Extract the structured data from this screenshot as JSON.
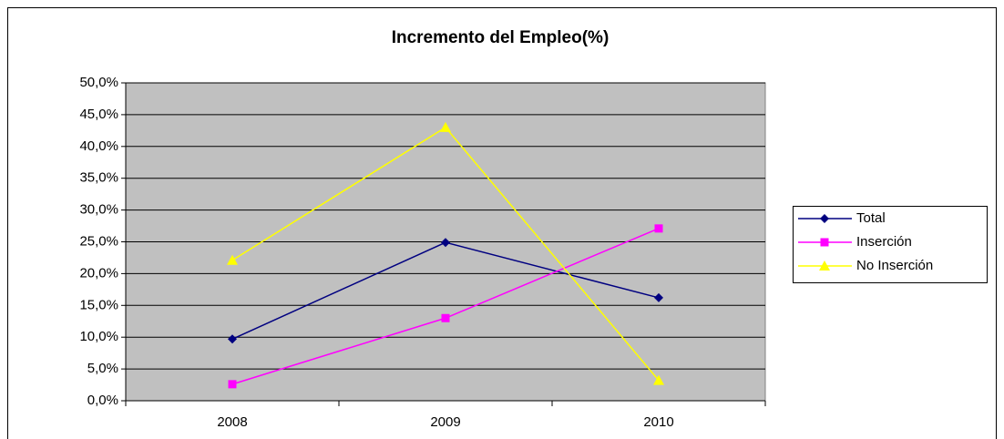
{
  "chart_data": {
    "type": "line",
    "title": "Incremento del Empleo(%)",
    "categories": [
      "2008",
      "2009",
      "2010"
    ],
    "series": [
      {
        "name": "Total",
        "color": "#000080",
        "marker": "diamond",
        "values": [
          9.7,
          24.9,
          16.2
        ]
      },
      {
        "name": "Inserción",
        "color": "#FF00FF",
        "marker": "square",
        "values": [
          2.6,
          13.0,
          27.1
        ]
      },
      {
        "name": "No Inserción",
        "color": "#FFFF00",
        "marker": "triangle",
        "values": [
          22.1,
          43.0,
          3.2
        ]
      }
    ],
    "ylim": [
      0,
      50
    ],
    "yticks": [
      {
        "value": 0,
        "label": "0,0%"
      },
      {
        "value": 5,
        "label": "5,0%"
      },
      {
        "value": 10,
        "label": "10,0%"
      },
      {
        "value": 15,
        "label": "15,0%"
      },
      {
        "value": 20,
        "label": "20,0%"
      },
      {
        "value": 25,
        "label": "25,0%"
      },
      {
        "value": 30,
        "label": "30,0%"
      },
      {
        "value": 35,
        "label": "35,0%"
      },
      {
        "value": 40,
        "label": "40,0%"
      },
      {
        "value": 45,
        "label": "45,0%"
      },
      {
        "value": 50,
        "label": "50,0%"
      }
    ],
    "grid": true,
    "legend": "right",
    "plot_background": "#C0C0C0"
  }
}
